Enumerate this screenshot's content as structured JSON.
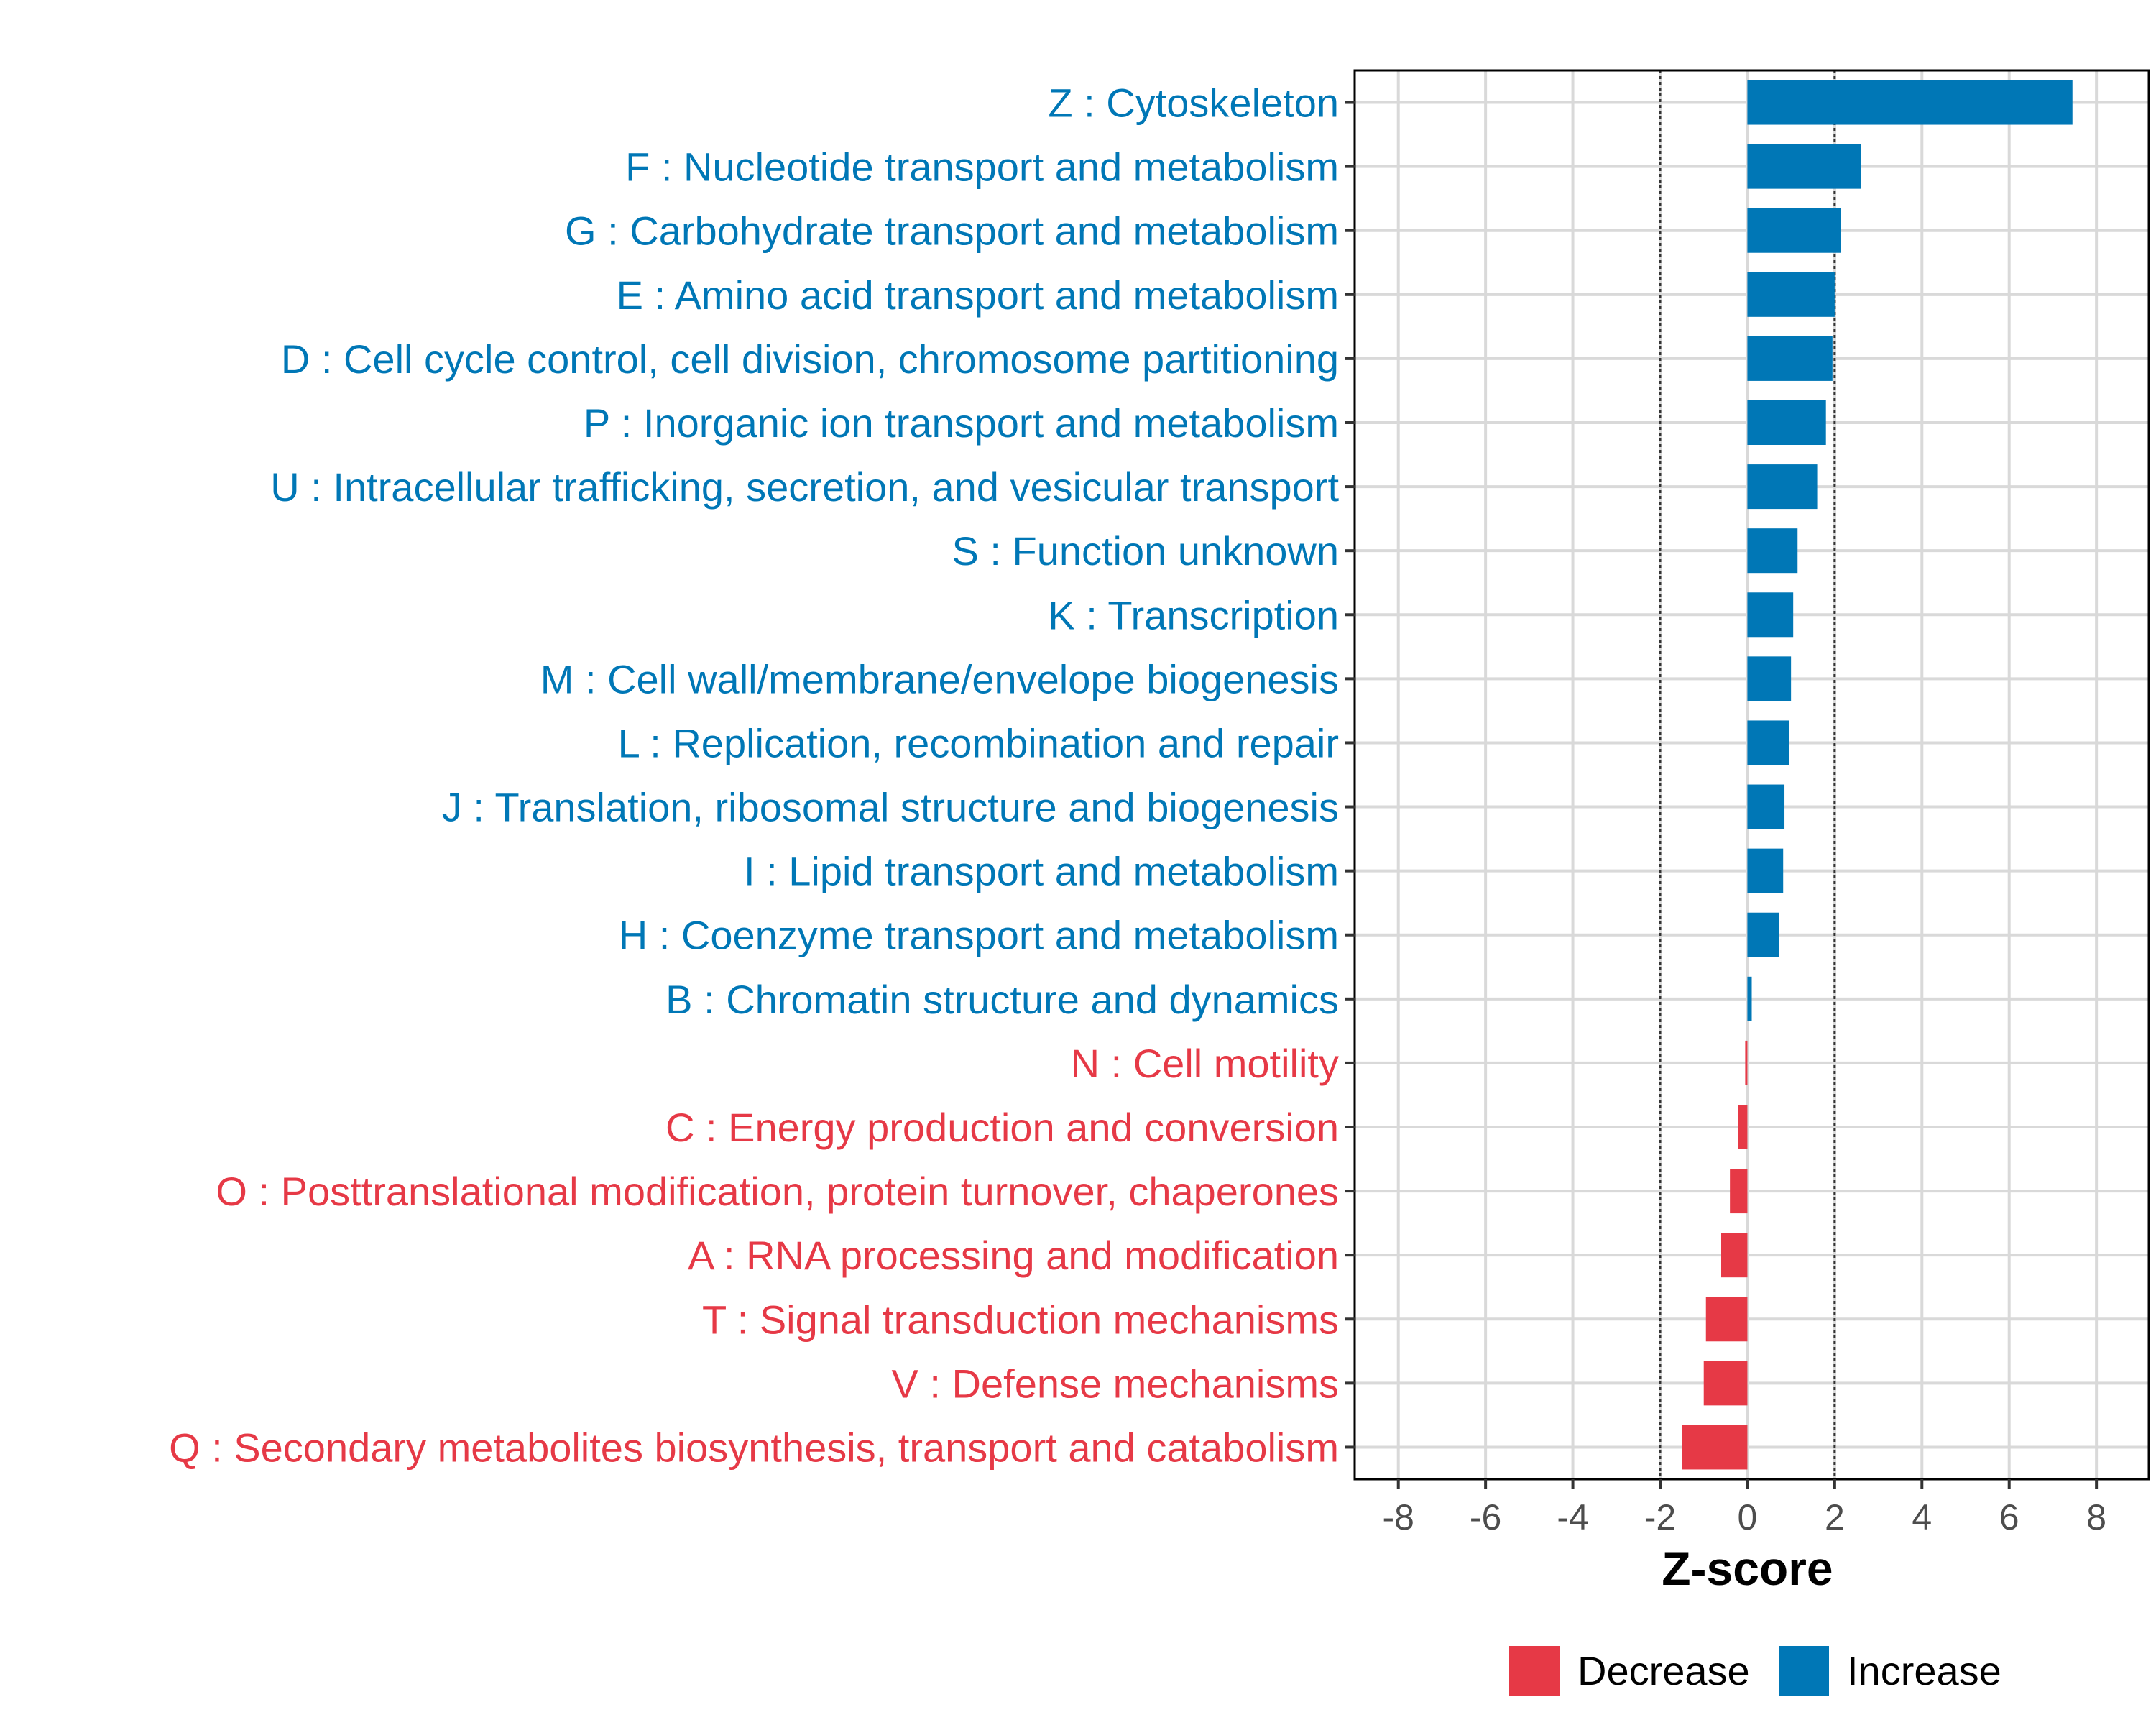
{
  "chart_data": {
    "type": "bar",
    "orientation": "horizontal",
    "xlabel": "Z-score",
    "ylabel": "",
    "xlim": [
      -9,
      9.2
    ],
    "xticks": [
      -8,
      -6,
      -4,
      -2,
      0,
      2,
      4,
      6,
      8
    ],
    "xtick_labels": [
      "-8",
      "-6",
      "-4",
      "-2",
      "0",
      "2",
      "4",
      "6",
      "8"
    ],
    "threshold_lines": [
      -2,
      2
    ],
    "grid": true,
    "legend": {
      "placement": "bottom",
      "entries": [
        {
          "name": "Decrease",
          "color": "#E63946"
        },
        {
          "name": "Increase",
          "color": "#0077B6"
        }
      ]
    },
    "categories": [
      {
        "label": "Z : Cytoskeleton",
        "value": 7.45,
        "group": "Increase"
      },
      {
        "label": "F : Nucleotide transport and metabolism",
        "value": 2.6,
        "group": "Increase"
      },
      {
        "label": "G : Carbohydrate transport and metabolism",
        "value": 2.15,
        "group": "Increase"
      },
      {
        "label": "E : Amino acid transport and metabolism",
        "value": 2.0,
        "group": "Increase"
      },
      {
        "label": "D : Cell cycle control, cell division, chromosome partitioning",
        "value": 1.95,
        "group": "Increase"
      },
      {
        "label": "P : Inorganic ion transport and metabolism",
        "value": 1.8,
        "group": "Increase"
      },
      {
        "label": "U : Intracellular trafficking, secretion, and vesicular transport",
        "value": 1.6,
        "group": "Increase"
      },
      {
        "label": "S : Function unknown",
        "value": 1.15,
        "group": "Increase"
      },
      {
        "label": "K : Transcription",
        "value": 1.05,
        "group": "Increase"
      },
      {
        "label": "M : Cell wall/membrane/envelope biogenesis",
        "value": 1.0,
        "group": "Increase"
      },
      {
        "label": "L : Replication, recombination and repair",
        "value": 0.95,
        "group": "Increase"
      },
      {
        "label": "J : Translation, ribosomal structure and biogenesis",
        "value": 0.85,
        "group": "Increase"
      },
      {
        "label": "I : Lipid transport and metabolism",
        "value": 0.82,
        "group": "Increase"
      },
      {
        "label": "H : Coenzyme transport and metabolism",
        "value": 0.72,
        "group": "Increase"
      },
      {
        "label": "B : Chromatin structure and dynamics",
        "value": 0.1,
        "group": "Increase"
      },
      {
        "label": "N : Cell motility",
        "value": -0.05,
        "group": "Decrease"
      },
      {
        "label": "C : Energy production and conversion",
        "value": -0.22,
        "group": "Decrease"
      },
      {
        "label": "O : Posttranslational modification, protein turnover, chaperones",
        "value": -0.4,
        "group": "Decrease"
      },
      {
        "label": "A : RNA processing and modification",
        "value": -0.6,
        "group": "Decrease"
      },
      {
        "label": "T : Signal transduction mechanisms",
        "value": -0.95,
        "group": "Decrease"
      },
      {
        "label": "V : Defense mechanisms",
        "value": -1.0,
        "group": "Decrease"
      },
      {
        "label": "Q : Secondary metabolites biosynthesis, transport and catabolism",
        "value": -1.5,
        "group": "Decrease"
      }
    ]
  },
  "colors": {
    "increase": "#0077B6",
    "decrease": "#E63946",
    "grid": "#d9d9d9",
    "panel_border": "#000000",
    "threshold": "#333333"
  }
}
